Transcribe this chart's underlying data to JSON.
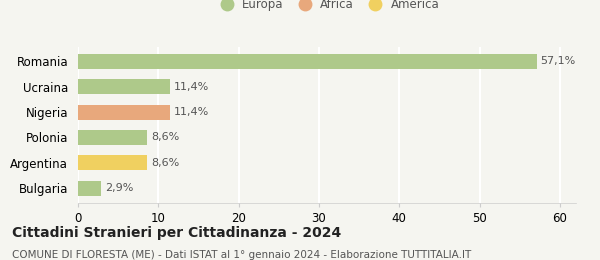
{
  "categories": [
    "Romania",
    "Ucraina",
    "Nigeria",
    "Polonia",
    "Argentina",
    "Bulgaria"
  ],
  "values": [
    57.1,
    11.4,
    11.4,
    8.6,
    8.6,
    2.9
  ],
  "labels": [
    "57,1%",
    "11,4%",
    "11,4%",
    "8,6%",
    "8,6%",
    "2,9%"
  ],
  "colors": [
    "#aec98a",
    "#aec98a",
    "#e8a87c",
    "#aec98a",
    "#f0d060",
    "#aec98a"
  ],
  "legend_items": [
    {
      "label": "Europa",
      "color": "#aec98a"
    },
    {
      "label": "Africa",
      "color": "#e8a87c"
    },
    {
      "label": "America",
      "color": "#f0d060"
    }
  ],
  "xlim": [
    0,
    62
  ],
  "xticks": [
    0,
    10,
    20,
    30,
    40,
    50,
    60
  ],
  "title": "Cittadini Stranieri per Cittadinanza - 2024",
  "subtitle": "COMUNE DI FLORESTA (ME) - Dati ISTAT al 1° gennaio 2024 - Elaborazione TUTTITALIA.IT",
  "background_color": "#f5f5f0",
  "grid_color": "#ffffff",
  "title_fontsize": 10,
  "subtitle_fontsize": 7.5,
  "bar_label_fontsize": 8,
  "ytick_fontsize": 8.5,
  "xtick_fontsize": 8.5,
  "legend_fontsize": 8.5
}
